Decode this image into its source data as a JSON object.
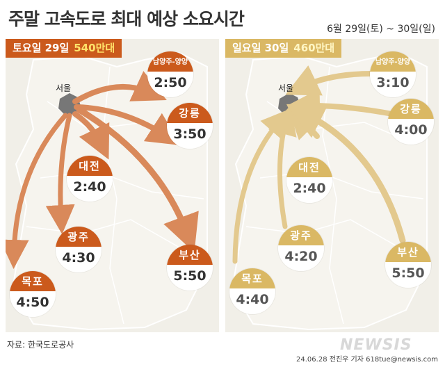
{
  "title": "주말 고속도로 최대 예상 소요시간",
  "date_range": "6월 29일(토) ~ 30일(일)",
  "colors": {
    "saturday": "#cb5a1c",
    "saturday_arrow": "#d9895a",
    "sunday": "#dab864",
    "sunday_arrow": "#e3c98e",
    "map_fill": "#f1efe8",
    "seoul": "#777777"
  },
  "saturday": {
    "day_label": "토요일 29일",
    "volume": "540만대",
    "seoul_label": "서울",
    "routes": [
      {
        "city": "남양주-양양",
        "time": "2:50"
      },
      {
        "city": "강릉",
        "time": "3:50"
      },
      {
        "city": "대전",
        "time": "2:40"
      },
      {
        "city": "광주",
        "time": "4:30"
      },
      {
        "city": "목포",
        "time": "4:50"
      },
      {
        "city": "부산",
        "time": "5:50"
      }
    ]
  },
  "sunday": {
    "day_label": "일요일 30일",
    "volume": "460만대",
    "seoul_label": "서울",
    "routes": [
      {
        "city": "남양주-양양",
        "time": "3:10"
      },
      {
        "city": "강릉",
        "time": "4:00"
      },
      {
        "city": "대전",
        "time": "2:40"
      },
      {
        "city": "광주",
        "time": "4:20"
      },
      {
        "city": "목포",
        "time": "4:40"
      },
      {
        "city": "부산",
        "time": "5:50"
      }
    ]
  },
  "source": "자료: 한국도로공사",
  "logo": "NEWSIS",
  "credit": "24.06.28 전진우 기자 618tue@newsis.com"
}
